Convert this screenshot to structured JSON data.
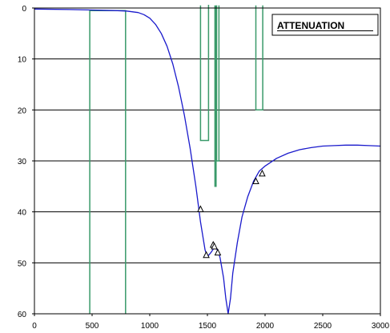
{
  "chart_data": {
    "type": "line",
    "title": "ATTENUATION",
    "xlim": [
      0,
      3000
    ],
    "ylim": [
      0,
      60
    ],
    "y_inverted": true,
    "grid": "horizontal",
    "x_ticks": [
      0,
      500,
      1000,
      1500,
      2000,
      2500,
      3000
    ],
    "y_ticks": [
      0,
      10,
      20,
      30,
      40,
      50,
      60
    ],
    "colors": {
      "curve": "#1a1acc",
      "mask": "#3a9a6a",
      "marker": "#000000",
      "grid": "#000000"
    },
    "attenuation_curve": {
      "x": [
        0,
        300,
        500,
        700,
        800,
        900,
        950,
        1000,
        1050,
        1100,
        1150,
        1200,
        1250,
        1300,
        1350,
        1400,
        1440,
        1480,
        1500,
        1530,
        1560,
        1590,
        1610,
        1640,
        1660,
        1680,
        1700,
        1720,
        1760,
        1800,
        1850,
        1900,
        1950,
        2000,
        2100,
        2200,
        2300,
        2400,
        2500,
        2600,
        2700,
        2800,
        2900,
        3000
      ],
      "y": [
        0.2,
        0.3,
        0.4,
        0.5,
        0.6,
        0.9,
        1.3,
        2.0,
        3.2,
        5.0,
        7.5,
        11.0,
        15.5,
        21.0,
        27.5,
        35.0,
        42.0,
        47.5,
        48.8,
        48.0,
        47.0,
        47.5,
        49.0,
        53.0,
        57.0,
        60.0,
        57.0,
        52.0,
        46.0,
        41.0,
        37.0,
        34.0,
        32.0,
        31.0,
        29.5,
        28.5,
        27.8,
        27.4,
        27.1,
        27.0,
        26.9,
        26.9,
        27.0,
        27.1
      ]
    },
    "mask_series": [
      {
        "x": [
          480,
          480,
          790,
          790
        ],
        "y": [
          60,
          0.5,
          0.5,
          60
        ]
      },
      {
        "x": [
          1440,
          1440,
          1510,
          1510,
          1505
        ],
        "y": [
          -0.5,
          26,
          26,
          -0.5,
          -0.5
        ]
      },
      {
        "x": [
          1565,
          1565,
          1575,
          1575
        ],
        "y": [
          -0.5,
          35,
          35,
          -0.5
        ]
      },
      {
        "x": [
          1580,
          1580,
          1600,
          1600
        ],
        "y": [
          -0.5,
          30,
          30,
          -0.5
        ]
      },
      {
        "x": [
          1920,
          1920,
          1980,
          1980
        ],
        "y": [
          -0.5,
          20,
          20,
          -0.5
        ]
      }
    ],
    "markers": {
      "x": [
        1440,
        1490,
        1550,
        1560,
        1590,
        1920,
        1975
      ],
      "y": [
        39.5,
        48.5,
        46.5,
        46.8,
        48.0,
        34.0,
        32.5
      ]
    }
  }
}
